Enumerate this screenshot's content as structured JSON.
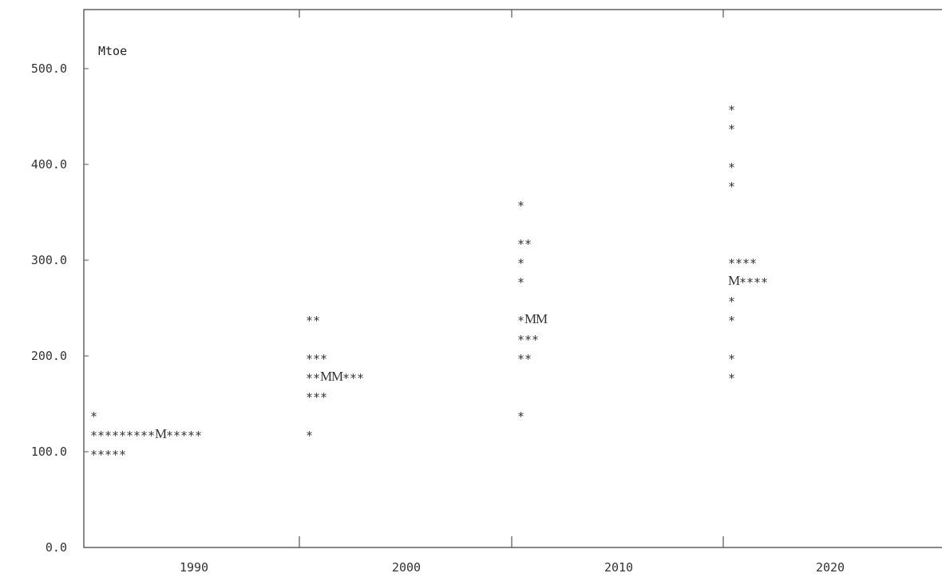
{
  "chart_data": {
    "type": "scatter",
    "title": "",
    "unit_label": "Mtoe",
    "xlabel": "",
    "ylabel": "",
    "ylim": [
      0,
      550
    ],
    "y_ticks": [
      "0.0",
      "100.0",
      "200.0",
      "300.0",
      "400.0",
      "500.0"
    ],
    "x_ticks": [
      "1990",
      "2000",
      "2010",
      "2020"
    ],
    "grid": false,
    "legend": "none",
    "marker_symbol": "*",
    "median_symbol": "M",
    "ink_color": "#333333",
    "rows": [
      {
        "y": 140,
        "text": "*"
      },
      {
        "y": 120,
        "text": "*********M*****"
      },
      {
        "y": 100,
        "text": "*****"
      },
      {
        "y": 240,
        "text": "**"
      },
      {
        "y": 200,
        "text": "***"
      },
      {
        "y": 180,
        "text": "**MM***"
      },
      {
        "y": 160,
        "text": "***"
      },
      {
        "y": 120,
        "text": "*"
      },
      {
        "y": 360,
        "text": "*"
      },
      {
        "y": 320,
        "text": "**"
      },
      {
        "y": 300,
        "text": "*"
      },
      {
        "y": 280,
        "text": "*"
      },
      {
        "y": 240,
        "text": "*MM"
      },
      {
        "y": 220,
        "text": "***"
      },
      {
        "y": 200,
        "text": "**"
      },
      {
        "y": 140,
        "text": "*"
      },
      {
        "y": 460,
        "text": "*"
      },
      {
        "y": 440,
        "text": "*"
      },
      {
        "y": 400,
        "text": "*"
      },
      {
        "y": 380,
        "text": "*"
      },
      {
        "y": 300,
        "text": "****"
      },
      {
        "y": 280,
        "text": "M****"
      },
      {
        "y": 260,
        "text": "*"
      },
      {
        "y": 240,
        "text": "*"
      },
      {
        "y": 200,
        "text": "*"
      },
      {
        "y": 180,
        "text": "*"
      }
    ]
  }
}
